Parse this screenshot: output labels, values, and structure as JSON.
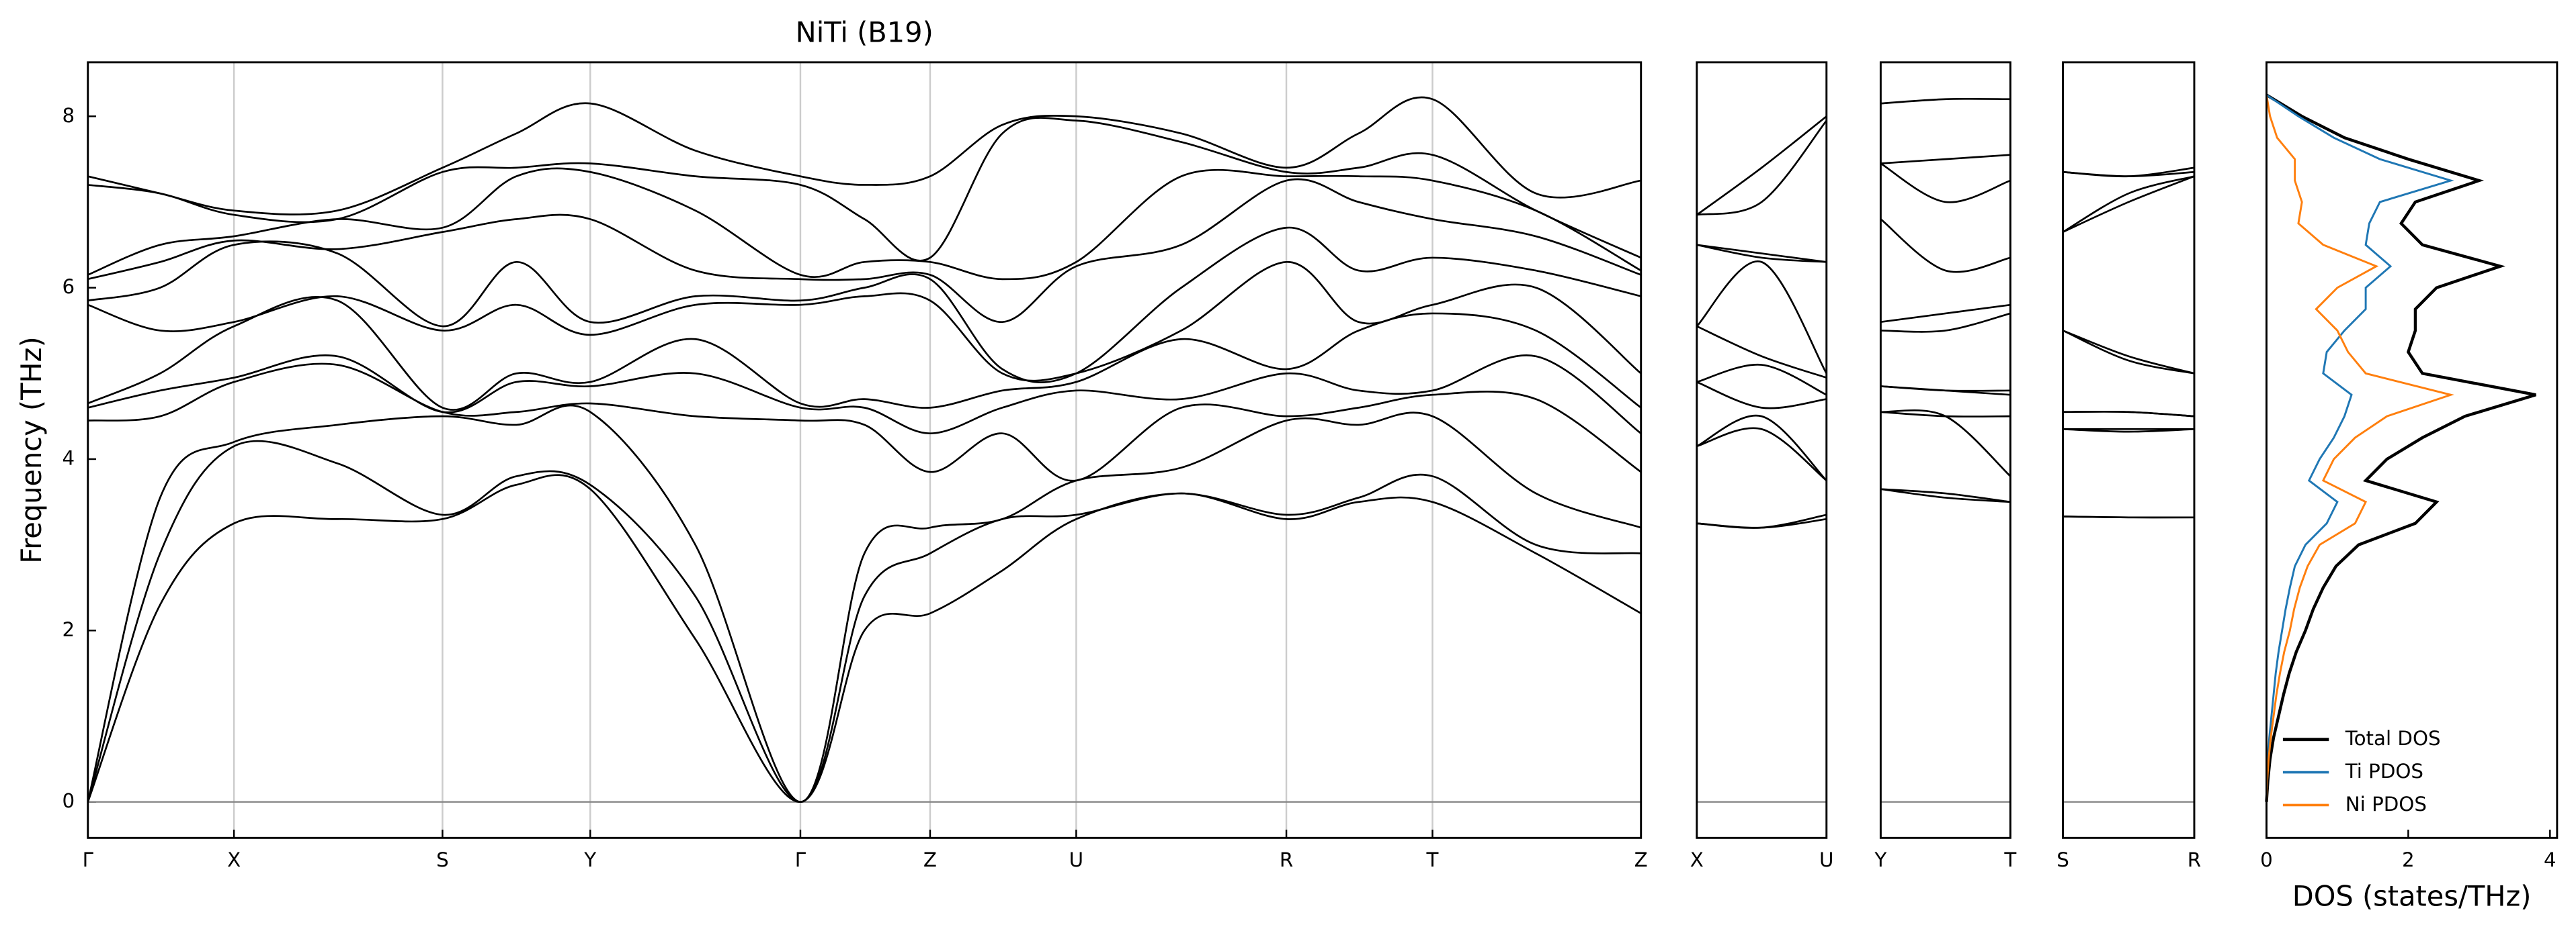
{
  "chart_data": [
    {
      "type": "bands",
      "title": "NiTi (B19)",
      "ylabel": "Frequency (THz)",
      "color": "#000000",
      "grid": true,
      "zero_line": true,
      "x": [
        0,
        0.44,
        0.89,
        1.52,
        2.16,
        2.61,
        3.06,
        3.7,
        4.34,
        4.73,
        5.13,
        5.57,
        6.02,
        6.66,
        7.3,
        7.74,
        8.19,
        8.82,
        9.46
      ],
      "xlim": [
        0,
        9.46
      ],
      "xticks": [
        {
          "value": 0,
          "label": "Γ"
        },
        {
          "value": 0.89,
          "label": "X"
        },
        {
          "value": 2.16,
          "label": "S"
        },
        {
          "value": 3.06,
          "label": "Y"
        },
        {
          "value": 4.34,
          "label": "Γ"
        },
        {
          "value": 5.13,
          "label": "Z"
        },
        {
          "value": 6.02,
          "label": "U"
        },
        {
          "value": 7.3,
          "label": "R"
        },
        {
          "value": 8.19,
          "label": "T"
        },
        {
          "value": 9.46,
          "label": "Z"
        }
      ],
      "ylim": [
        -0.42,
        8.63
      ],
      "yticks": [
        0,
        2,
        4,
        6,
        8
      ],
      "values": [
        [
          0,
          2.3,
          3.25,
          3.3,
          3.3,
          3.7,
          3.65,
          1.9,
          0,
          2.0,
          2.2,
          2.7,
          3.3,
          3.6,
          3.3,
          3.5,
          3.5,
          2.9,
          2.2
        ],
        [
          0,
          2.9,
          4.15,
          3.95,
          3.35,
          3.8,
          3.7,
          2.4,
          0,
          2.4,
          2.9,
          3.3,
          3.35,
          3.6,
          3.35,
          3.55,
          3.8,
          3.0,
          2.9
        ],
        [
          0,
          3.55,
          4.2,
          4.4,
          4.5,
          4.4,
          4.55,
          3.0,
          0,
          2.9,
          3.2,
          3.3,
          3.75,
          3.9,
          4.45,
          4.4,
          4.5,
          3.6,
          3.2
        ],
        [
          4.45,
          4.5,
          4.9,
          5.1,
          4.55,
          4.55,
          4.65,
          4.5,
          4.45,
          4.4,
          3.85,
          4.3,
          3.75,
          4.6,
          4.5,
          4.6,
          4.75,
          4.7,
          3.85
        ],
        [
          4.6,
          4.8,
          4.95,
          5.2,
          4.55,
          4.9,
          4.85,
          5.0,
          4.6,
          4.6,
          4.3,
          4.6,
          4.8,
          4.7,
          5.0,
          4.8,
          4.8,
          5.2,
          4.3
        ],
        [
          4.65,
          5.0,
          5.55,
          5.85,
          4.6,
          5.0,
          4.9,
          5.4,
          4.65,
          4.7,
          4.6,
          4.8,
          4.9,
          5.4,
          5.05,
          5.5,
          5.7,
          5.5,
          4.6
        ],
        [
          5.8,
          5.5,
          5.6,
          5.9,
          5.5,
          5.8,
          5.45,
          5.8,
          5.8,
          5.9,
          5.85,
          5.0,
          5.0,
          5.5,
          6.3,
          5.6,
          5.8,
          6.0,
          5.0
        ],
        [
          5.85,
          6.0,
          6.5,
          6.4,
          5.55,
          6.3,
          5.6,
          5.9,
          5.85,
          6.0,
          6.1,
          5.05,
          5.0,
          6.0,
          6.7,
          6.2,
          6.35,
          6.2,
          5.9
        ],
        [
          6.1,
          6.3,
          6.55,
          6.45,
          6.65,
          6.8,
          6.8,
          6.2,
          6.1,
          6.1,
          6.15,
          5.6,
          6.25,
          6.5,
          7.25,
          7.0,
          6.8,
          6.6,
          6.15
        ],
        [
          6.15,
          6.5,
          6.6,
          6.8,
          6.7,
          7.3,
          7.35,
          6.9,
          6.15,
          6.3,
          6.3,
          6.1,
          6.3,
          7.3,
          7.3,
          7.3,
          7.25,
          6.9,
          6.2
        ],
        [
          7.2,
          7.1,
          6.85,
          6.8,
          7.35,
          7.4,
          7.45,
          7.3,
          7.2,
          6.8,
          6.35,
          7.8,
          7.95,
          7.7,
          7.35,
          7.4,
          7.55,
          6.9,
          6.35
        ],
        [
          7.3,
          7.1,
          6.9,
          6.9,
          7.4,
          7.8,
          8.15,
          7.6,
          7.3,
          7.2,
          7.3,
          7.9,
          8.0,
          7.8,
          7.4,
          7.8,
          8.2,
          7.1,
          7.25
        ]
      ]
    },
    {
      "type": "bands",
      "color": "#000000",
      "zero_line": true,
      "x": [
        0,
        0.5,
        1
      ],
      "xlim": [
        0,
        1
      ],
      "xticks": [
        {
          "value": 0,
          "label": "X"
        },
        {
          "value": 1,
          "label": "U"
        }
      ],
      "ylim": [
        -0.42,
        8.63
      ],
      "values": [
        [
          3.25,
          3.2,
          3.3
        ],
        [
          3.25,
          3.2,
          3.35
        ],
        [
          4.15,
          4.35,
          3.75
        ],
        [
          4.15,
          4.5,
          3.75
        ],
        [
          4.9,
          4.6,
          4.7
        ],
        [
          4.9,
          5.1,
          4.75
        ],
        [
          5.55,
          5.2,
          4.95
        ],
        [
          5.55,
          6.3,
          5.0
        ],
        [
          6.5,
          6.35,
          6.3
        ],
        [
          6.5,
          6.4,
          6.3
        ],
        [
          6.85,
          7.0,
          7.95
        ],
        [
          6.85,
          7.4,
          8.0
        ]
      ]
    },
    {
      "type": "bands",
      "color": "#000000",
      "zero_line": true,
      "x": [
        0,
        0.5,
        1
      ],
      "xlim": [
        0,
        1
      ],
      "xticks": [
        {
          "value": 0,
          "label": "Y"
        },
        {
          "value": 1,
          "label": "T"
        }
      ],
      "ylim": [
        -0.42,
        8.63
      ],
      "values": [
        [
          3.65,
          3.55,
          3.5
        ],
        [
          3.65,
          3.6,
          3.5
        ],
        [
          4.55,
          4.5,
          3.8
        ],
        [
          4.55,
          4.5,
          4.5
        ],
        [
          4.85,
          4.8,
          4.75
        ],
        [
          4.85,
          4.8,
          4.8
        ],
        [
          5.5,
          5.5,
          5.7
        ],
        [
          5.6,
          5.7,
          5.8
        ],
        [
          6.8,
          6.2,
          6.35
        ],
        [
          7.45,
          7.0,
          7.25
        ],
        [
          7.45,
          7.5,
          7.55
        ],
        [
          8.15,
          8.2,
          8.2
        ]
      ]
    },
    {
      "type": "bands",
      "color": "#000000",
      "zero_line": true,
      "x": [
        0,
        0.5,
        1
      ],
      "xlim": [
        0,
        1
      ],
      "xticks": [
        {
          "value": 0,
          "label": "S"
        },
        {
          "value": 1,
          "label": "R"
        }
      ],
      "ylim": [
        -0.42,
        8.63
      ],
      "values": [
        [
          3.33,
          3.32,
          3.32
        ],
        [
          3.33,
          3.32,
          3.32
        ],
        [
          4.35,
          4.32,
          4.35
        ],
        [
          4.35,
          4.35,
          4.35
        ],
        [
          4.55,
          4.55,
          4.5
        ],
        [
          4.55,
          4.55,
          4.5
        ],
        [
          5.5,
          5.15,
          5.0
        ],
        [
          5.5,
          5.2,
          5.0
        ],
        [
          6.65,
          7.0,
          7.3
        ],
        [
          6.65,
          7.1,
          7.3
        ],
        [
          7.35,
          7.3,
          7.35
        ],
        [
          7.35,
          7.3,
          7.4
        ]
      ]
    },
    {
      "type": "line",
      "xlabel": "DOS (states/THz)",
      "legend": "lower left",
      "xlim": [
        0,
        4.1
      ],
      "xticks": [
        0,
        2,
        4
      ],
      "ylim": [
        -0.42,
        8.63
      ],
      "frequency": [
        0,
        0.25,
        0.5,
        0.75,
        1,
        1.25,
        1.5,
        1.75,
        2,
        2.25,
        2.5,
        2.75,
        3,
        3.25,
        3.5,
        3.75,
        4,
        4.25,
        4.5,
        4.75,
        5,
        5.25,
        5.5,
        5.75,
        6,
        6.25,
        6.5,
        6.75,
        7,
        7.25,
        7.5,
        7.75,
        8,
        8.25
      ],
      "series": [
        {
          "name": "Total DOS",
          "color": "#000000",
          "values": [
            0,
            0.02,
            0.05,
            0.1,
            0.17,
            0.24,
            0.32,
            0.42,
            0.55,
            0.66,
            0.8,
            0.98,
            1.3,
            2.1,
            2.4,
            1.4,
            1.7,
            2.2,
            2.8,
            3.8,
            2.2,
            2.0,
            2.1,
            2.1,
            2.4,
            3.3,
            2.2,
            1.9,
            2.1,
            3.0,
            2.0,
            1.1,
            0.5,
            0
          ]
        },
        {
          "name": "Ti PDOS",
          "color": "#1f77b4",
          "values": [
            0,
            0.01,
            0.02,
            0.04,
            0.07,
            0.1,
            0.13,
            0.17,
            0.22,
            0.27,
            0.33,
            0.4,
            0.55,
            0.85,
            1.0,
            0.6,
            0.75,
            0.95,
            1.1,
            1.2,
            0.8,
            0.85,
            1.1,
            1.4,
            1.4,
            1.75,
            1.4,
            1.45,
            1.6,
            2.6,
            1.6,
            0.95,
            0.45,
            0
          ]
        },
        {
          "name": "Ni PDOS",
          "color": "#ff7f0e",
          "values": [
            0,
            0.01,
            0.03,
            0.06,
            0.1,
            0.14,
            0.19,
            0.25,
            0.33,
            0.39,
            0.47,
            0.58,
            0.75,
            1.25,
            1.4,
            0.8,
            0.95,
            1.25,
            1.7,
            2.6,
            1.4,
            1.15,
            1.0,
            0.7,
            1.0,
            1.55,
            0.8,
            0.45,
            0.5,
            0.4,
            0.4,
            0.15,
            0.05,
            0
          ]
        }
      ]
    }
  ]
}
